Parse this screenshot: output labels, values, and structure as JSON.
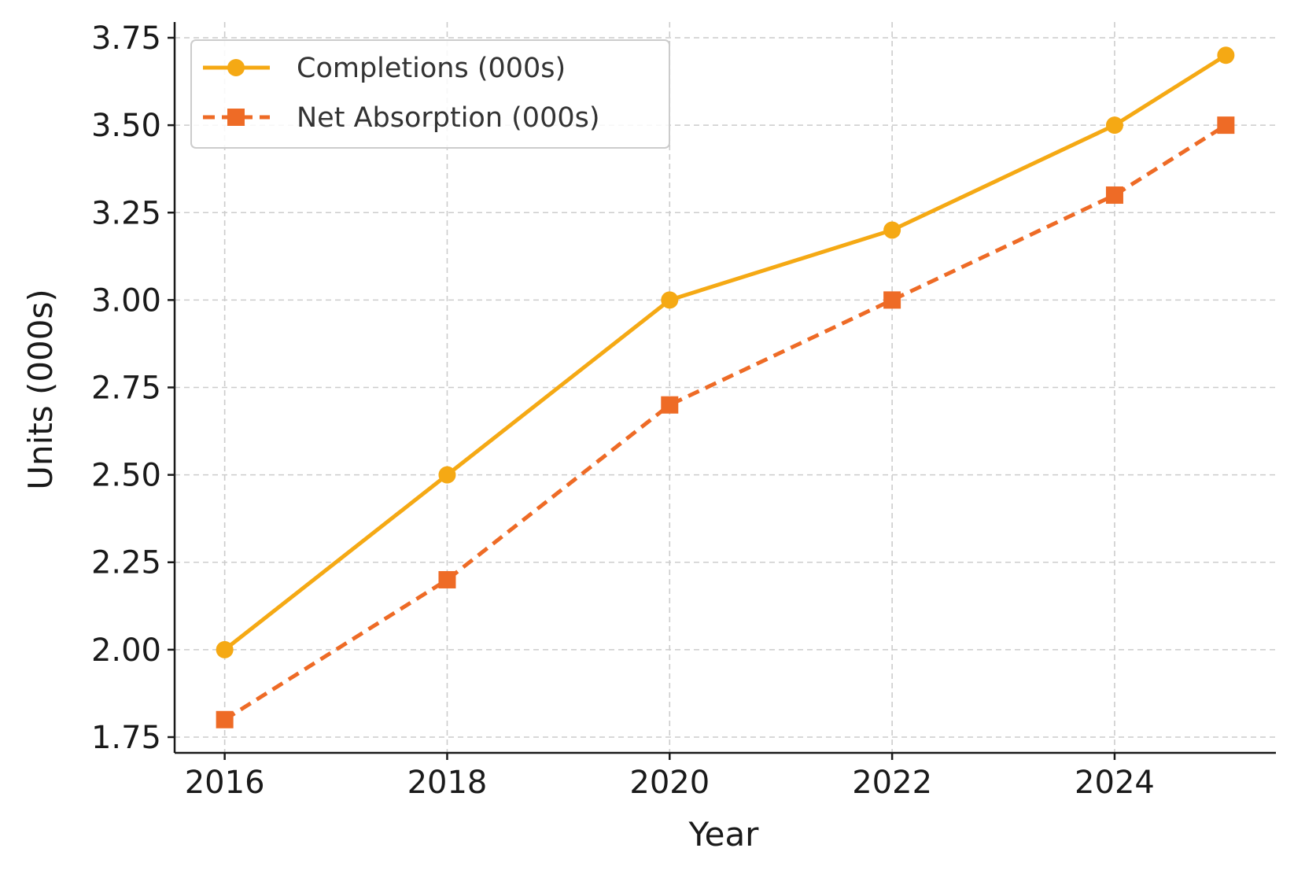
{
  "chart_data": {
    "type": "line",
    "title": "",
    "xlabel": "Year",
    "ylabel": "Units (000s)",
    "x": [
      2016,
      2018,
      2020,
      2022,
      2024,
      2025
    ],
    "xlim": [
      2015.55,
      2025.45
    ],
    "ylim": [
      1.705,
      3.795
    ],
    "xticks": [
      2016,
      2018,
      2020,
      2022,
      2024
    ],
    "xtick_labels": [
      "2016",
      "2018",
      "2020",
      "2022",
      "2024"
    ],
    "yticks": [
      1.75,
      2.0,
      2.25,
      2.5,
      2.75,
      3.0,
      3.25,
      3.5,
      3.75
    ],
    "ytick_labels": [
      "1.75",
      "2.00",
      "2.25",
      "2.50",
      "2.75",
      "3.00",
      "3.25",
      "3.50",
      "3.75"
    ],
    "grid": true,
    "legend_position": "top-left",
    "series": [
      {
        "name": "Completions (000s)",
        "values": [
          2.0,
          2.5,
          3.0,
          3.2,
          3.5,
          3.7
        ],
        "color": "#F5A914",
        "line_style": "solid",
        "marker": "circle"
      },
      {
        "name": "Net Absorption (000s)",
        "values": [
          1.8,
          2.2,
          2.7,
          3.0,
          3.3,
          3.5
        ],
        "color": "#EE6B26",
        "line_style": "dashed",
        "marker": "square"
      }
    ]
  }
}
